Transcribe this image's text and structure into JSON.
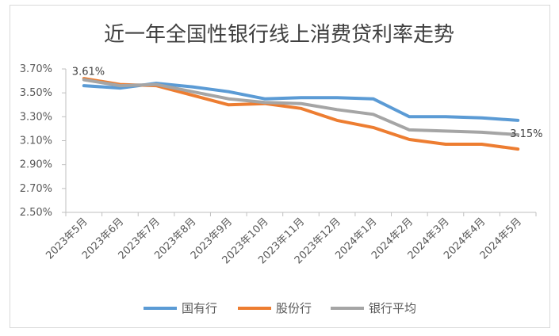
{
  "chart_data": {
    "type": "line",
    "title": "近一年全国性银行线上消费贷利率走势",
    "xlabel": "",
    "ylabel": "",
    "categories": [
      "2023年5月",
      "2023年6月",
      "2023年7月",
      "2023年8月",
      "2023年9月",
      "2023年10月",
      "2023年11月",
      "2023年12月",
      "2024年1月",
      "2024年2月",
      "2024年3月",
      "2024年4月",
      "2024年5月"
    ],
    "yticks": [
      "2.50%",
      "2.70%",
      "2.90%",
      "3.10%",
      "3.30%",
      "3.50%",
      "3.70%"
    ],
    "ylim": [
      2.5,
      3.7
    ],
    "grid": false,
    "legend_position": "bottom",
    "series": [
      {
        "name": "国有行",
        "color": "#5b9bd5",
        "values": [
          3.56,
          3.54,
          3.58,
          3.55,
          3.51,
          3.45,
          3.46,
          3.46,
          3.45,
          3.3,
          3.3,
          3.29,
          3.27
        ]
      },
      {
        "name": "股份行",
        "color": "#ed7d31",
        "values": [
          3.62,
          3.57,
          3.56,
          3.48,
          3.4,
          3.41,
          3.37,
          3.27,
          3.21,
          3.11,
          3.07,
          3.07,
          3.03
        ]
      },
      {
        "name": "银行平均",
        "color": "#a5a5a5",
        "values": [
          3.61,
          3.56,
          3.57,
          3.51,
          3.45,
          3.42,
          3.41,
          3.36,
          3.32,
          3.19,
          3.18,
          3.17,
          3.15
        ]
      }
    ],
    "data_labels": [
      {
        "series": 2,
        "index": 0,
        "text": "3.61%"
      },
      {
        "series": 2,
        "index": 12,
        "text": "3.15%"
      }
    ]
  }
}
